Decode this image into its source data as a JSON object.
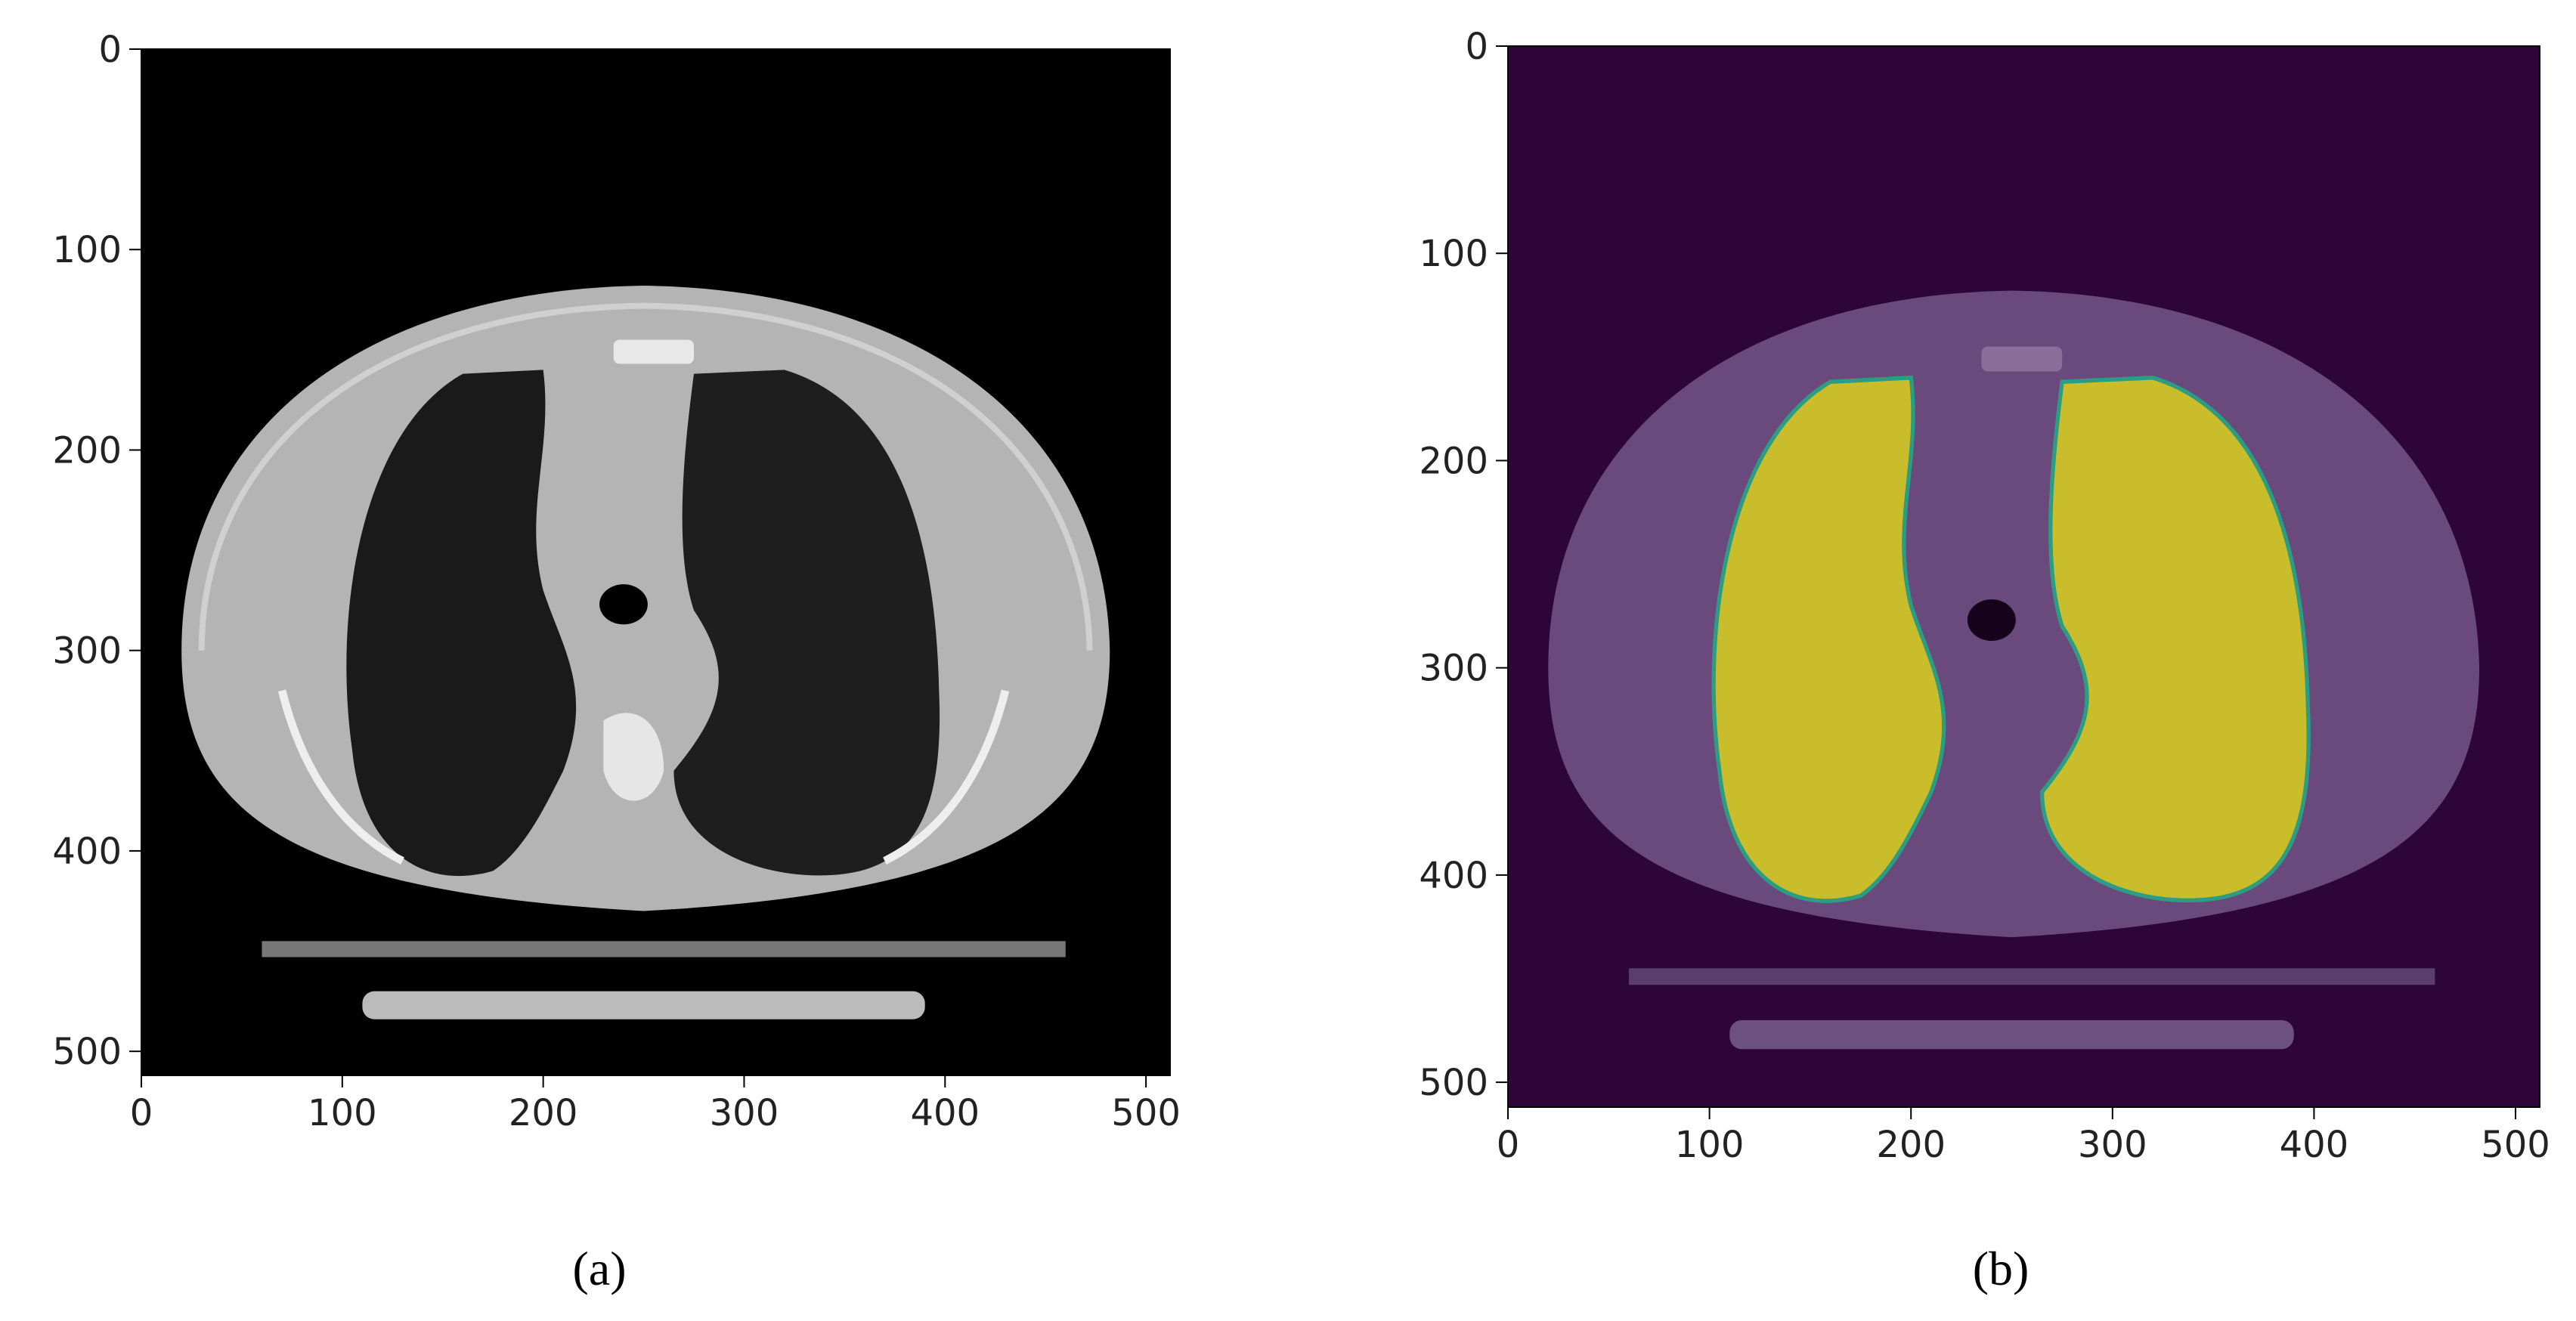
{
  "panels": [
    {
      "caption": "(a)",
      "xlim": [
        0,
        512
      ],
      "ylim": [
        512,
        0
      ],
      "xticks": [
        0,
        100,
        200,
        300,
        400,
        500
      ],
      "yticks": [
        0,
        100,
        200,
        300,
        400,
        500
      ]
    },
    {
      "caption": "(b)",
      "xlim": [
        0,
        512
      ],
      "ylim": [
        512,
        0
      ],
      "xticks": [
        0,
        100,
        200,
        300,
        400,
        500
      ],
      "yticks": [
        0,
        100,
        200,
        300,
        400,
        500
      ]
    }
  ]
}
